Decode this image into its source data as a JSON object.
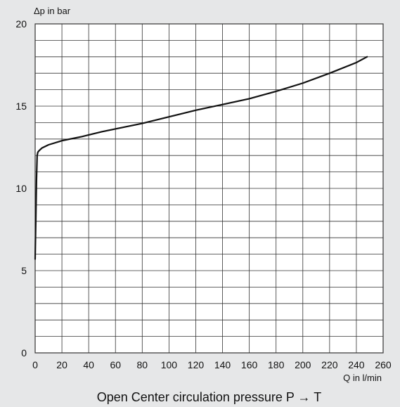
{
  "chart_data": {
    "type": "line",
    "title": "Open Center circulation pressure P → T",
    "xlabel": "Q in l/min",
    "ylabel": "Δp in bar",
    "xlim": [
      0,
      260
    ],
    "ylim": [
      0,
      20
    ],
    "x_major_ticks": [
      0,
      20,
      40,
      60,
      80,
      100,
      120,
      140,
      160,
      180,
      200,
      220,
      240,
      260
    ],
    "y_major_ticks": [
      0,
      5,
      10,
      15,
      20
    ],
    "x_minor_step": 20,
    "y_minor_step": 1,
    "grid": true,
    "colors": {
      "background": "#e6e7e8",
      "plot_area": "#ffffff",
      "grid": "#333333",
      "curve": "#111111"
    },
    "series": [
      {
        "x": [
          0,
          0.5,
          1,
          1.5,
          2,
          3,
          5,
          10,
          20,
          35,
          50,
          80,
          100,
          120,
          140,
          160,
          180,
          200,
          220,
          240,
          248
        ],
        "y": [
          5.7,
          8.0,
          10.5,
          12.0,
          12.2,
          12.3,
          12.45,
          12.65,
          12.9,
          13.15,
          13.45,
          13.95,
          14.35,
          14.75,
          15.1,
          15.45,
          15.9,
          16.4,
          17.0,
          17.65,
          18.0
        ]
      }
    ]
  }
}
